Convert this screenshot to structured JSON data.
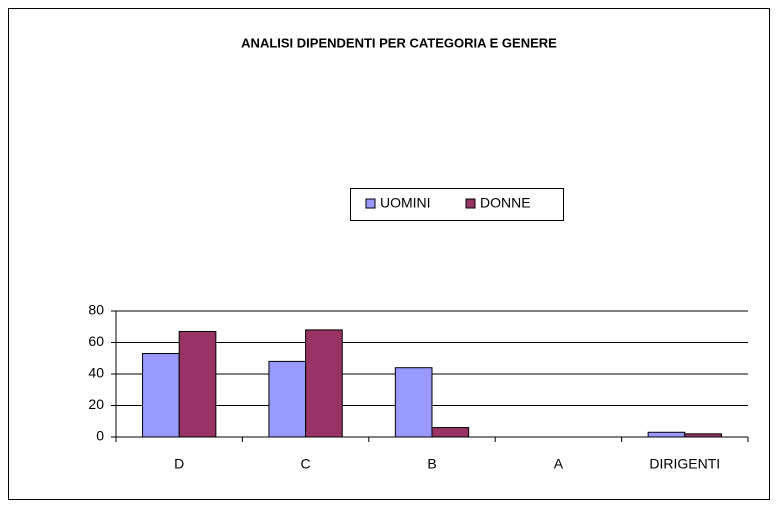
{
  "chart_data": {
    "type": "bar",
    "title": "ANALISI DIPENDENTI PER CATEGORIA E GENERE",
    "categories": [
      "D",
      "C",
      "B",
      "A",
      "DIRIGENTI"
    ],
    "series": [
      {
        "name": "UOMINI",
        "color": "#9999ff",
        "values": [
          53,
          48,
          44,
          0,
          3
        ]
      },
      {
        "name": "DONNE",
        "color": "#993366",
        "values": [
          67,
          68,
          6,
          0,
          2
        ]
      }
    ],
    "ylim": [
      0,
      80
    ],
    "yticks": [
      0,
      20,
      40,
      60,
      80
    ],
    "grid": true,
    "legend": "center"
  }
}
